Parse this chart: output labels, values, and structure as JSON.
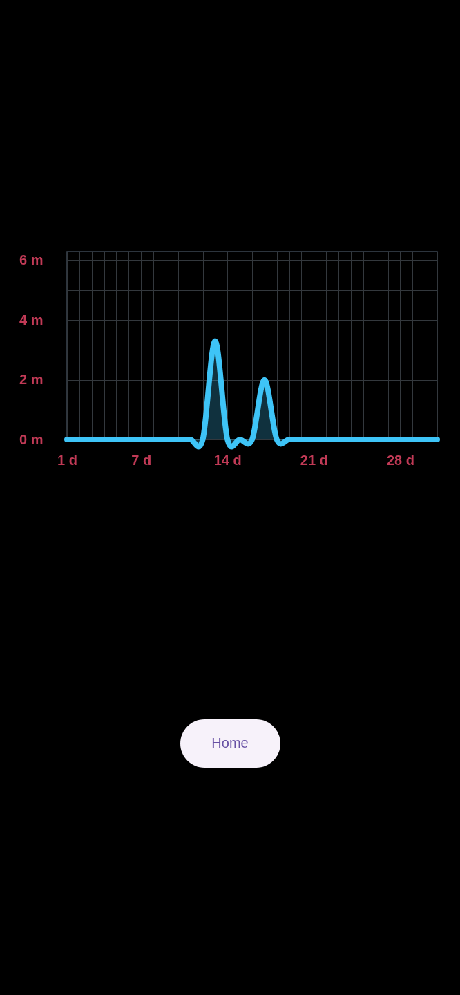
{
  "chart_data": {
    "type": "area",
    "x": [
      1,
      2,
      3,
      4,
      5,
      6,
      7,
      8,
      9,
      10,
      11,
      12,
      13,
      14,
      15,
      16,
      17,
      18,
      19,
      20,
      21,
      22,
      23,
      24,
      25,
      26,
      27,
      28,
      29,
      30,
      31
    ],
    "values": [
      0,
      0,
      0,
      0,
      0,
      0,
      0,
      0,
      0,
      0,
      0,
      0,
      3.3,
      0,
      0,
      0,
      2.0,
      0,
      0,
      0,
      0,
      0,
      0,
      0,
      0,
      0,
      0,
      0,
      0,
      0,
      0
    ],
    "color": "#3ec4f7",
    "xlim": [
      1,
      31
    ],
    "xticks": [
      {
        "value": 1,
        "label": "1 d"
      },
      {
        "value": 2,
        "label": null
      },
      {
        "value": 3,
        "label": null
      },
      {
        "value": 4,
        "label": null
      },
      {
        "value": 5,
        "label": null
      },
      {
        "value": 6,
        "label": null
      },
      {
        "value": 7,
        "label": "7 d"
      },
      {
        "value": 8,
        "label": null
      },
      {
        "value": 9,
        "label": null
      },
      {
        "value": 10,
        "label": null
      },
      {
        "value": 11,
        "label": null
      },
      {
        "value": 12,
        "label": null
      },
      {
        "value": 13,
        "label": null
      },
      {
        "value": 14,
        "label": "14 d"
      },
      {
        "value": 15,
        "label": null
      },
      {
        "value": 16,
        "label": null
      },
      {
        "value": 17,
        "label": null
      },
      {
        "value": 18,
        "label": null
      },
      {
        "value": 19,
        "label": null
      },
      {
        "value": 20,
        "label": null
      },
      {
        "value": 21,
        "label": "21 d"
      },
      {
        "value": 22,
        "label": null
      },
      {
        "value": 23,
        "label": null
      },
      {
        "value": 24,
        "label": null
      },
      {
        "value": 25,
        "label": null
      },
      {
        "value": 26,
        "label": null
      },
      {
        "value": 27,
        "label": null
      },
      {
        "value": 28,
        "label": "28 d"
      },
      {
        "value": 29,
        "label": null
      },
      {
        "value": 30,
        "label": null
      },
      {
        "value": 31,
        "label": null
      }
    ],
    "ylim": [
      0,
      6.3
    ],
    "yticks": [
      {
        "value": 0,
        "label": "0 m"
      },
      {
        "value": 1,
        "label": null
      },
      {
        "value": 2,
        "label": "2 m"
      },
      {
        "value": 3,
        "label": null
      },
      {
        "value": 4,
        "label": "4 m"
      },
      {
        "value": 5,
        "label": null
      },
      {
        "value": 6,
        "label": "6 m"
      }
    ],
    "grid": true,
    "annotations": [
      "Home"
    ]
  }
}
